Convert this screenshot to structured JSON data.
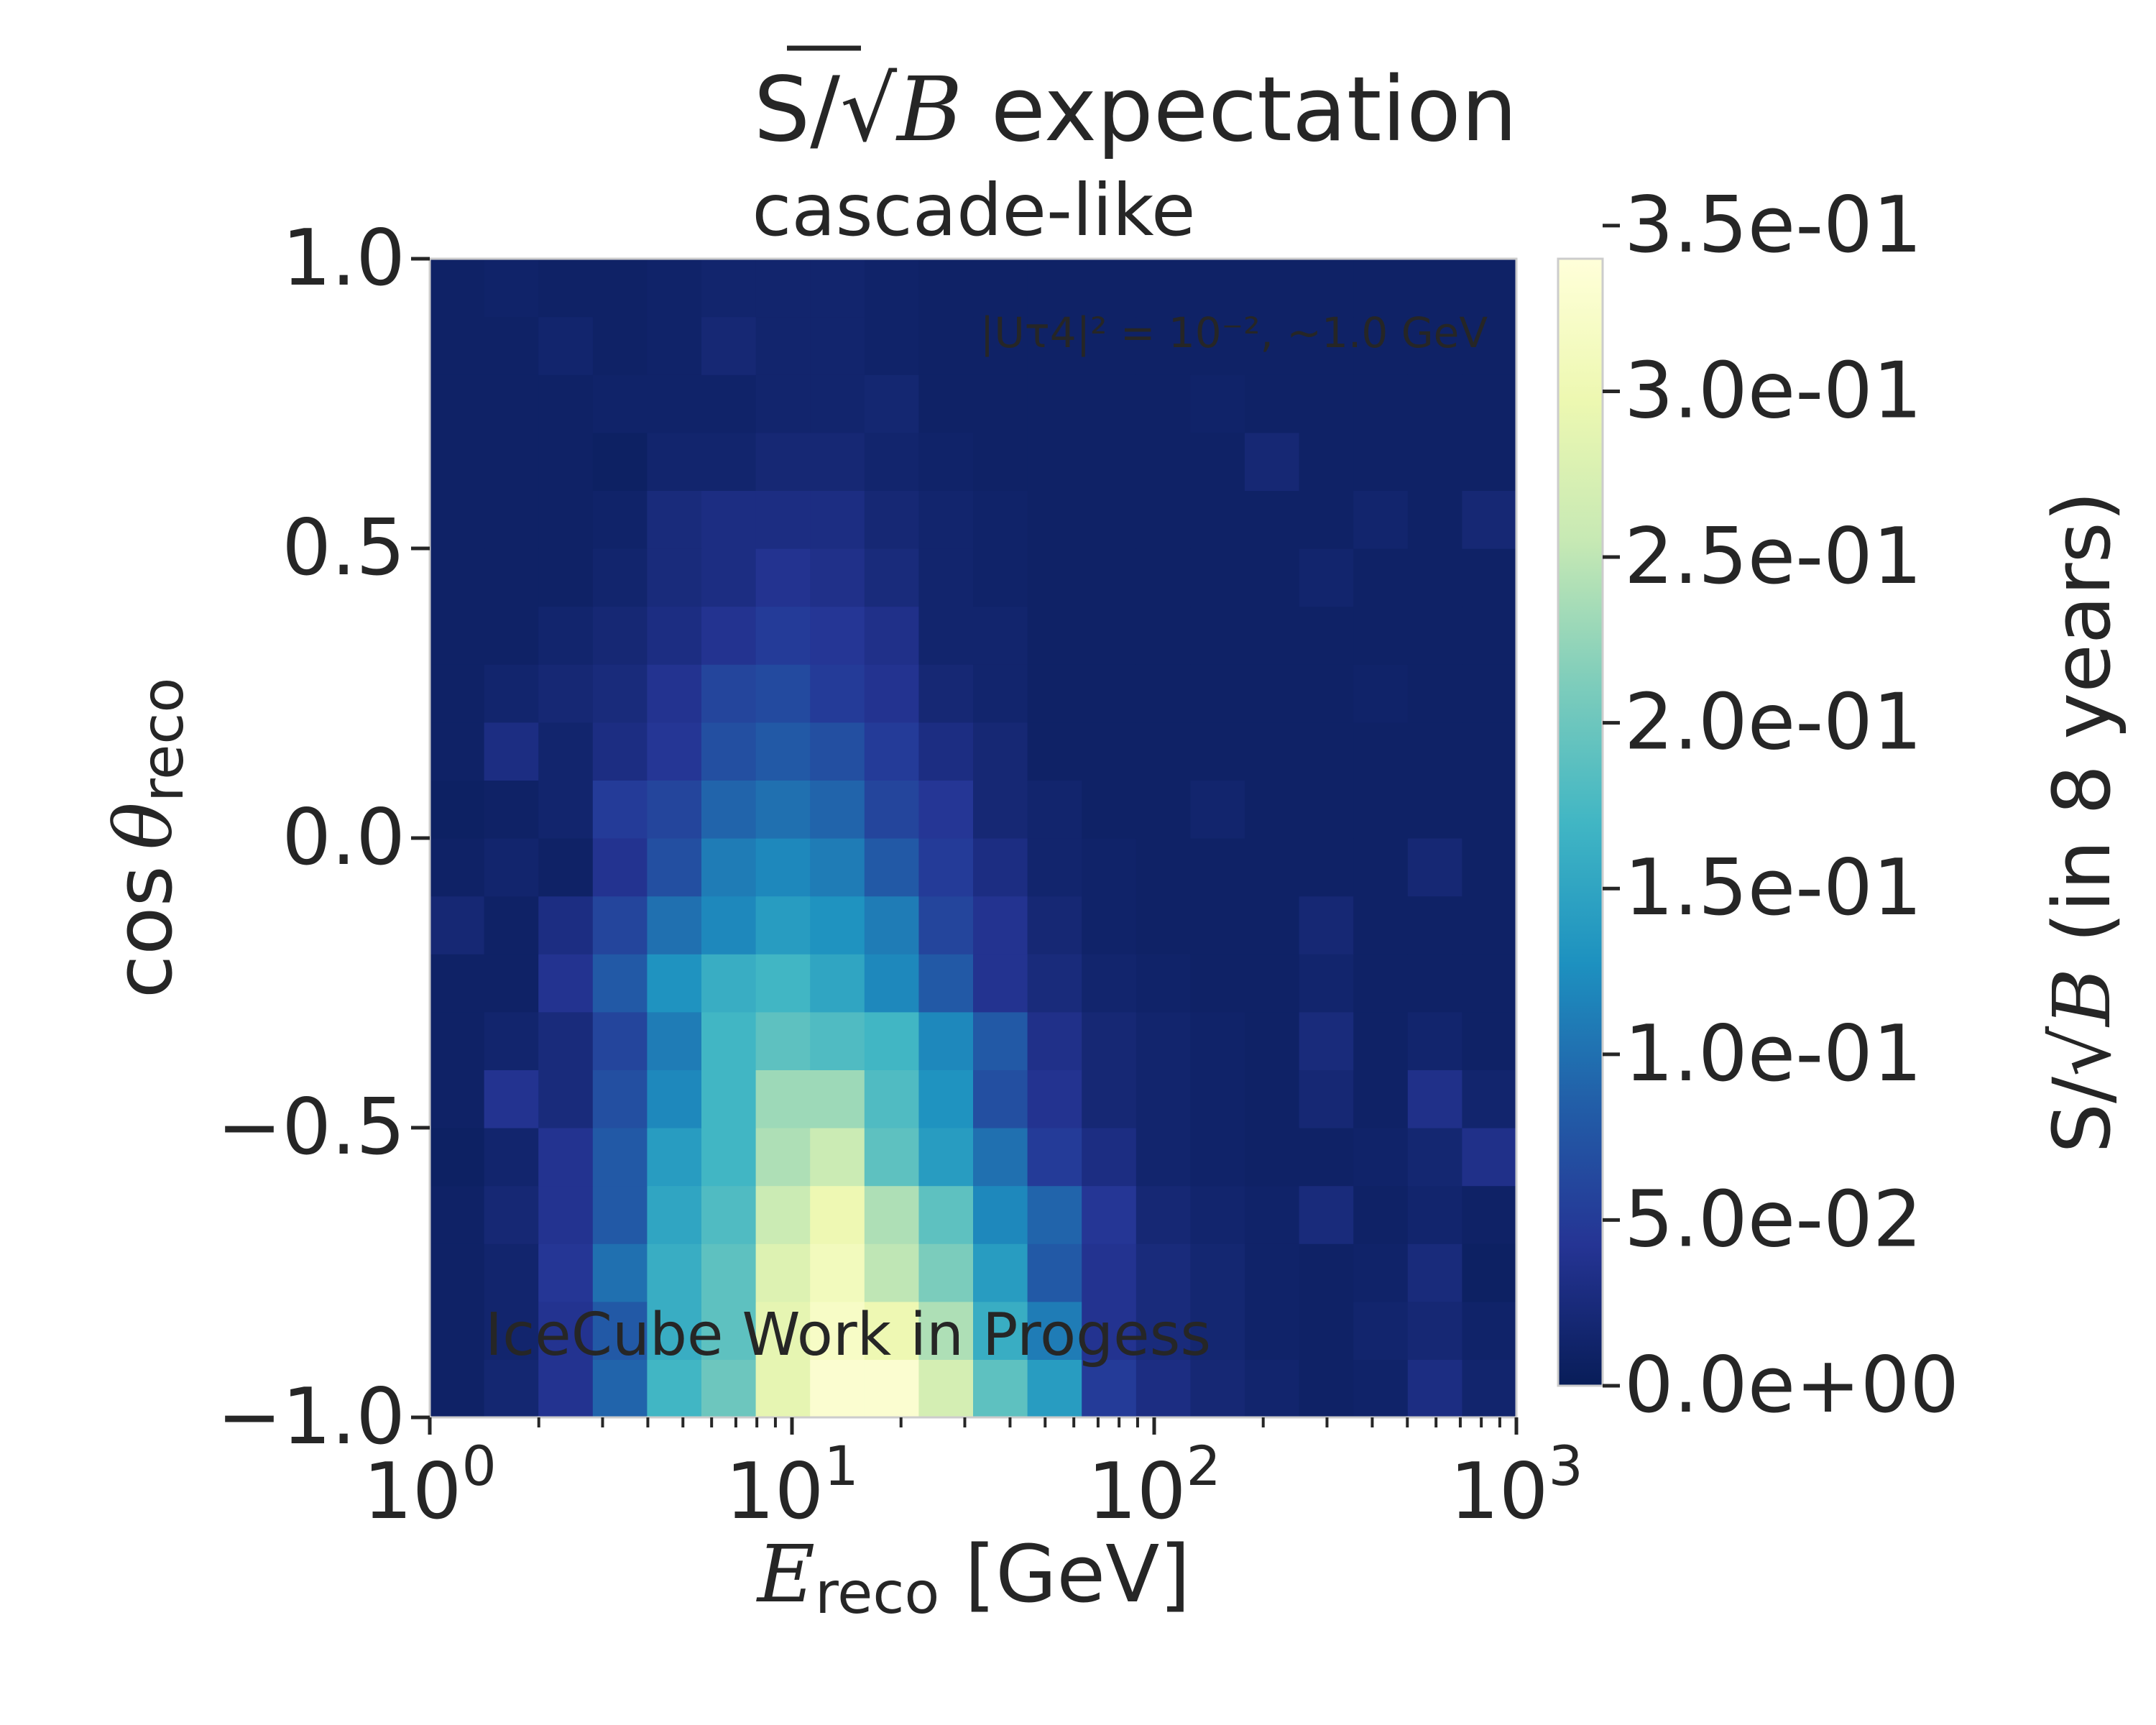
{
  "chart_data": {
    "type": "heatmap",
    "title": "S/√B expectation",
    "title_parts": {
      "prefix": "S/",
      "radical": "√",
      "radicand": "B",
      "suffix": " expectation"
    },
    "subtitle": "cascade-like",
    "annotation": {
      "text": "|Uτ4|² = 10⁻², ~1.0 GeV",
      "color": "#e8ecf5",
      "placement": "top-right"
    },
    "watermark": {
      "text": "IceCube Work in Progess",
      "color": "#ff0000",
      "placement": "bottom-left"
    },
    "xlabel": {
      "symbol": "E",
      "subscript": "reco",
      "unit": " [GeV]"
    },
    "ylabel": {
      "prefix": "cos",
      "symbol": "θ",
      "subscript": "reco"
    },
    "colorbar_label": {
      "prefix": "S/",
      "radical": "√",
      "radicand": "B",
      "suffix": " (in 8 years)"
    },
    "x_scale": "log",
    "x_range": [
      1,
      1000
    ],
    "y_range": [
      -1.0,
      1.0
    ],
    "x_bins": 20,
    "y_bins": 20,
    "x_tick_labels": [
      {
        "base": "10",
        "exp": "0",
        "value": 1
      },
      {
        "base": "10",
        "exp": "1",
        "value": 10
      },
      {
        "base": "10",
        "exp": "2",
        "value": 100
      },
      {
        "base": "10",
        "exp": "3",
        "value": 1000
      }
    ],
    "y_ticks": [
      {
        "value": -1.0,
        "label": "−1.0"
      },
      {
        "value": -0.5,
        "label": "−0.5"
      },
      {
        "value": 0.0,
        "label": "0.0"
      },
      {
        "value": 0.5,
        "label": "0.5"
      },
      {
        "value": 1.0,
        "label": "1.0"
      }
    ],
    "colorbar_ticks": [
      {
        "value": 0.0,
        "label": "0.0e+00"
      },
      {
        "value": 0.05,
        "label": "5.0e-02"
      },
      {
        "value": 0.1,
        "label": "1.0e-01"
      },
      {
        "value": 0.15,
        "label": "1.5e-01"
      },
      {
        "value": 0.2,
        "label": "2.0e-01"
      },
      {
        "value": 0.25,
        "label": "2.5e-01"
      },
      {
        "value": 0.3,
        "label": "3.0e-01"
      },
      {
        "value": 0.35,
        "label": "3.5e-01"
      }
    ],
    "colorbar_range": [
      0.0,
      0.34
    ],
    "colormap": "YlGnBu",
    "grid": false,
    "values_note": "rows ordered from cosθ = -1.0 (bottom) to +1.0 (top); columns log-spaced from 1 to 1000 GeV",
    "values": [
      [
        0.01,
        0.018,
        0.04,
        0.09,
        0.17,
        0.2,
        0.29,
        0.33,
        0.33,
        0.27,
        0.19,
        0.14,
        0.05,
        0.03,
        0.02,
        0.015,
        0.01,
        0.012,
        0.03,
        0.015
      ],
      [
        0.01,
        0.015,
        0.04,
        0.08,
        0.16,
        0.19,
        0.29,
        0.32,
        0.3,
        0.24,
        0.16,
        0.11,
        0.04,
        0.025,
        0.018,
        0.012,
        0.01,
        0.015,
        0.02,
        0.012
      ],
      [
        0.01,
        0.015,
        0.045,
        0.1,
        0.16,
        0.19,
        0.28,
        0.31,
        0.25,
        0.21,
        0.14,
        0.08,
        0.04,
        0.025,
        0.018,
        0.012,
        0.01,
        0.012,
        0.025,
        0.008
      ],
      [
        0.01,
        0.02,
        0.04,
        0.08,
        0.15,
        0.18,
        0.26,
        0.3,
        0.24,
        0.19,
        0.12,
        0.09,
        0.045,
        0.02,
        0.015,
        0.012,
        0.025,
        0.01,
        0.015,
        0.01
      ],
      [
        0.008,
        0.015,
        0.04,
        0.08,
        0.14,
        0.17,
        0.24,
        0.26,
        0.19,
        0.14,
        0.1,
        0.05,
        0.03,
        0.015,
        0.012,
        0.01,
        0.01,
        0.012,
        0.018,
        0.035
      ],
      [
        0.01,
        0.04,
        0.025,
        0.07,
        0.12,
        0.17,
        0.23,
        0.23,
        0.18,
        0.13,
        0.07,
        0.04,
        0.02,
        0.015,
        0.012,
        0.01,
        0.02,
        0.01,
        0.035,
        0.015
      ],
      [
        0.01,
        0.015,
        0.025,
        0.06,
        0.11,
        0.17,
        0.19,
        0.18,
        0.17,
        0.12,
        0.08,
        0.035,
        0.02,
        0.015,
        0.012,
        0.01,
        0.025,
        0.01,
        0.015,
        0.01
      ],
      [
        0.01,
        0.01,
        0.04,
        0.08,
        0.13,
        0.16,
        0.17,
        0.15,
        0.12,
        0.08,
        0.04,
        0.025,
        0.015,
        0.012,
        0.01,
        0.01,
        0.015,
        0.01,
        0.01,
        0.01
      ],
      [
        0.02,
        0.01,
        0.03,
        0.06,
        0.1,
        0.12,
        0.14,
        0.13,
        0.11,
        0.06,
        0.04,
        0.02,
        0.012,
        0.01,
        0.01,
        0.01,
        0.02,
        0.01,
        0.01,
        0.01
      ],
      [
        0.01,
        0.015,
        0.01,
        0.04,
        0.07,
        0.11,
        0.12,
        0.11,
        0.08,
        0.05,
        0.03,
        0.015,
        0.012,
        0.01,
        0.01,
        0.01,
        0.01,
        0.01,
        0.02,
        0.01
      ],
      [
        0.008,
        0.01,
        0.015,
        0.05,
        0.06,
        0.09,
        0.1,
        0.09,
        0.06,
        0.045,
        0.02,
        0.015,
        0.01,
        0.01,
        0.015,
        0.01,
        0.01,
        0.01,
        0.01,
        0.01
      ],
      [
        0.01,
        0.03,
        0.015,
        0.03,
        0.045,
        0.07,
        0.08,
        0.07,
        0.05,
        0.03,
        0.02,
        0.01,
        0.01,
        0.01,
        0.01,
        0.01,
        0.01,
        0.01,
        0.01,
        0.01
      ],
      [
        0.01,
        0.015,
        0.02,
        0.025,
        0.04,
        0.06,
        0.065,
        0.05,
        0.04,
        0.02,
        0.015,
        0.01,
        0.01,
        0.01,
        0.01,
        0.01,
        0.01,
        0.012,
        0.01,
        0.01
      ],
      [
        0.01,
        0.01,
        0.015,
        0.02,
        0.03,
        0.04,
        0.05,
        0.045,
        0.035,
        0.015,
        0.015,
        0.01,
        0.01,
        0.01,
        0.01,
        0.01,
        0.01,
        0.01,
        0.01,
        0.01
      ],
      [
        0.01,
        0.01,
        0.01,
        0.015,
        0.025,
        0.03,
        0.04,
        0.035,
        0.025,
        0.015,
        0.012,
        0.01,
        0.01,
        0.01,
        0.01,
        0.01,
        0.015,
        0.01,
        0.01,
        0.01
      ],
      [
        0.01,
        0.01,
        0.01,
        0.012,
        0.025,
        0.03,
        0.03,
        0.03,
        0.02,
        0.015,
        0.012,
        0.01,
        0.01,
        0.01,
        0.01,
        0.01,
        0.01,
        0.015,
        0.01,
        0.02
      ],
      [
        0.01,
        0.01,
        0.01,
        0.008,
        0.015,
        0.015,
        0.02,
        0.02,
        0.015,
        0.012,
        0.01,
        0.01,
        0.01,
        0.01,
        0.01,
        0.02,
        0.01,
        0.01,
        0.01,
        0.01
      ],
      [
        0.01,
        0.01,
        0.01,
        0.012,
        0.012,
        0.012,
        0.015,
        0.015,
        0.018,
        0.01,
        0.01,
        0.01,
        0.01,
        0.01,
        0.012,
        0.01,
        0.01,
        0.01,
        0.01,
        0.01
      ],
      [
        0.01,
        0.01,
        0.015,
        0.01,
        0.012,
        0.02,
        0.015,
        0.015,
        0.012,
        0.01,
        0.01,
        0.01,
        0.01,
        0.01,
        0.01,
        0.01,
        0.01,
        0.01,
        0.01,
        0.01
      ],
      [
        0.01,
        0.012,
        0.01,
        0.01,
        0.012,
        0.015,
        0.015,
        0.015,
        0.012,
        0.01,
        0.01,
        0.01,
        0.01,
        0.01,
        0.01,
        0.01,
        0.01,
        0.01,
        0.01,
        0.01
      ]
    ]
  }
}
